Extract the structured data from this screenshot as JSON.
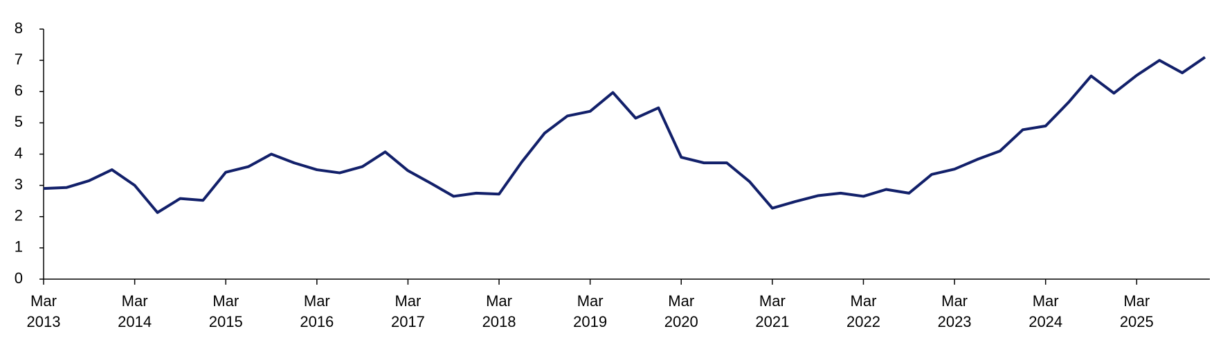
{
  "chart_data": {
    "type": "line",
    "categories": [
      "Mar 2013",
      null,
      null,
      null,
      "Mar 2014",
      null,
      null,
      null,
      "Mar 2015",
      null,
      null,
      null,
      "Mar 2016",
      null,
      null,
      null,
      "Mar 2017",
      null,
      null,
      null,
      "Mar 2018",
      null,
      null,
      null,
      "Mar 2019",
      null,
      null,
      null,
      "Mar 2020",
      null,
      null,
      null,
      "Mar 2021",
      null,
      null,
      null,
      "Mar 2022",
      null,
      null,
      null,
      "Mar 2023",
      null,
      null,
      null,
      "Mar 2024",
      null,
      null,
      null,
      "Mar 2025",
      null,
      null,
      null
    ],
    "values": [
      2.9,
      2.93,
      3.15,
      3.5,
      3.0,
      2.13,
      2.58,
      2.52,
      3.42,
      3.6,
      4.0,
      3.72,
      3.5,
      3.4,
      3.6,
      4.07,
      3.47,
      3.07,
      2.65,
      2.75,
      2.72,
      3.75,
      4.67,
      5.22,
      5.37,
      5.97,
      5.15,
      5.48,
      3.9,
      3.72,
      3.72,
      3.12,
      2.27,
      2.48,
      2.67,
      2.75,
      2.65,
      2.87,
      2.75,
      3.35,
      3.52,
      3.83,
      4.1,
      4.78,
      4.9,
      5.65,
      6.5,
      5.95,
      6.52,
      7.0,
      6.6,
      7.1
    ],
    "color": "#12206a",
    "ylim": [
      0,
      8
    ],
    "yticks": [
      0,
      1,
      2,
      3,
      4,
      5,
      6,
      7,
      8
    ],
    "grid": false
  }
}
